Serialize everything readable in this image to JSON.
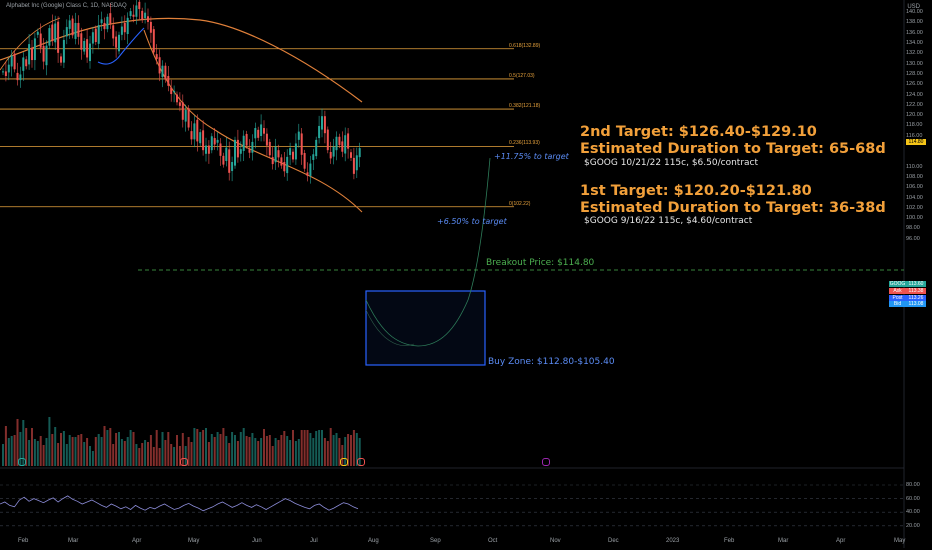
{
  "header": {
    "title": "Alphabet Inc (Google) Class C, 1D, NASDAQ",
    "currency": "USD"
  },
  "annotations": {
    "target2_title": "2nd Target: $126.40-$129.10",
    "target2_duration": "Estimated Duration to Target: 65-68d",
    "target2_contract": "$GOOG 10/21/22 115c, $6.50/contract",
    "target1_title": "1st Target: $120.20-$121.80",
    "target1_duration": "Estimated Duration to Target: 36-38d",
    "target1_contract": "$GOOG 9/16/22 115c, $4.60/contract",
    "pct_target2": "+11.75% to target",
    "pct_target1": "+6.50% to target",
    "breakout": "Breakout Price: $114.80",
    "buy_zone": "Buy Zone: $112.80-$105.40"
  },
  "price_tags": {
    "breakout_price": "114.80",
    "rows": [
      {
        "label": "GOOG",
        "value": "113.60",
        "color": "#26a69a"
      },
      {
        "label": "Ask",
        "value": "113.38",
        "color": "#ef5350"
      },
      {
        "label": "Post",
        "value": "113.26",
        "color": "#2962ff"
      },
      {
        "label": "Bid",
        "value": "113.08",
        "color": "#2196f3"
      }
    ]
  },
  "colors": {
    "up": "#26a69a",
    "down": "#ef5350",
    "fib": "#e8a33d",
    "ma_long": "#e0803a",
    "ma_short": "#2196f3",
    "rsi": "#8c8cd8",
    "buy_zone": "#2962ff",
    "breakout": "#4caf50"
  },
  "chart_data": {
    "type": "candlestick",
    "symbol": "GOOG",
    "interval": "1D",
    "y_axis_ticks": [
      96,
      98,
      100,
      102,
      104,
      106,
      108,
      110,
      112,
      114,
      116,
      118,
      120,
      122,
      124,
      126,
      128,
      130,
      132,
      134,
      136,
      138,
      140
    ],
    "ylim": [
      95,
      141
    ],
    "x_axis_labels": [
      "Feb",
      "Mar",
      "Apr",
      "May",
      "Jun",
      "Jul",
      "Aug",
      "Sep",
      "Oct",
      "Nov",
      "Dec",
      "2023",
      "Feb",
      "Mar",
      "Apr",
      "May"
    ],
    "fib_levels": [
      {
        "label": "0.618(132.89)",
        "value": 132.89
      },
      {
        "label": "0.5(127.03)",
        "value": 127.03
      },
      {
        "label": "0.382(121.18)",
        "value": 121.18
      },
      {
        "label": "0.236(113.93)",
        "value": 113.93
      },
      {
        "label": "0(102.22)",
        "value": 102.22
      }
    ],
    "breakout_level": 114.8,
    "buy_zone": {
      "high": 112.8,
      "low": 105.4,
      "start": "2022-07-28",
      "end": "2022-09-13"
    },
    "projection_path": [
      112.8,
      110.5,
      108.6,
      107.9,
      108.7,
      111.2,
      114.8,
      118.5,
      121.5,
      124.5,
      127.5
    ],
    "candles_close": [
      128.5,
      127.6,
      129.8,
      131.6,
      128.9,
      126.8,
      127.9,
      131.2,
      129.5,
      133.8,
      130.7,
      134.9,
      136.2,
      133.1,
      130.4,
      133.5,
      136.9,
      134.5,
      137.8,
      132.1,
      130.2,
      134.6,
      137.1,
      138.4,
      135.5,
      137.9,
      135.2,
      132.7,
      134.4,
      131.2,
      133.9,
      136.1,
      134.2,
      137.5,
      138.6,
      136.7,
      139.1,
      137.8,
      134.9,
      133.1,
      135.6,
      137.2,
      136.1,
      138.9,
      140.2,
      139.1,
      141.3,
      140.6,
      138.5,
      139.9,
      138.1,
      136.0,
      132.2,
      130.9,
      128.1,
      129.6,
      126.9,
      125.7,
      124.1,
      124.7,
      122.5,
      121.8,
      119.1,
      121.0,
      117.6,
      115.3,
      118.4,
      114.9,
      116.7,
      113.2,
      114.1,
      112.5,
      115.9,
      114.3,
      115.2,
      112.1,
      110.4,
      113.7,
      108.8,
      110.9,
      115.2,
      111.8,
      113.4,
      116.0,
      114.1,
      112.7,
      114.8,
      117.5,
      115.6,
      118.2,
      116.4,
      114.1,
      112.2,
      110.5,
      113.9,
      111.8,
      110.2,
      109.1,
      111.9,
      113.6,
      111.4,
      114.5,
      116.8,
      112.3,
      109.6,
      108.2,
      110.6,
      112.4,
      115.2,
      117.9,
      119.8,
      116.5,
      113.2,
      111.6,
      113.9,
      115.8,
      114.2,
      112.9,
      116.1,
      113.5,
      111.7,
      108.6,
      112.2,
      113.6
    ],
    "volume_heights": [
      22,
      40,
      28,
      30,
      31,
      47,
      34,
      46,
      38,
      26,
      38,
      27,
      25,
      30,
      21,
      28,
      49,
      32,
      39,
      23,
      33,
      35,
      22,
      31,
      29,
      29,
      31,
      32,
      24,
      28,
      20,
      15,
      29,
      32,
      29,
      40,
      36,
      38,
      22,
      33,
      34,
      27,
      25,
      29,
      36,
      34,
      22,
      18,
      23,
      26,
      24,
      31,
      19,
      36,
      18,
      34,
      26,
      34,
      22,
      19,
      31,
      20,
      33,
      20,
      29,
      24,
      38,
      37,
      34,
      36,
      38,
      24,
      32,
      29,
      34,
      32,
      38,
      30,
      23,
      34,
      31,
      25,
      34,
      38,
      30,
      29,
      33,
      28,
      25,
      28,
      37,
      30,
      31,
      20,
      28,
      26,
      31,
      35,
      30,
      26,
      36,
      25,
      27,
      36,
      36,
      36,
      33,
      28,
      35,
      36,
      36,
      28,
      25,
      38,
      31,
      33,
      28,
      21,
      29,
      32,
      31,
      36,
      33,
      28
    ],
    "rsi": {
      "levels": [
        80,
        60,
        40,
        20
      ],
      "values": [
        52,
        55,
        50,
        48,
        58,
        62,
        56,
        60,
        57,
        54,
        58,
        61,
        55,
        60,
        64,
        59,
        56,
        52,
        55,
        58,
        54,
        50,
        47,
        52,
        49,
        45,
        48,
        44,
        50,
        46,
        43,
        47,
        45,
        49,
        52,
        48,
        44,
        46,
        50,
        53,
        49,
        46,
        42,
        45,
        48,
        52,
        55,
        51,
        47,
        50,
        54,
        50,
        47,
        51,
        48,
        44,
        48,
        52,
        56,
        60,
        57,
        53,
        50,
        47,
        45,
        50,
        52,
        47,
        43,
        46,
        50,
        54,
        52,
        48,
        45
      ]
    }
  }
}
